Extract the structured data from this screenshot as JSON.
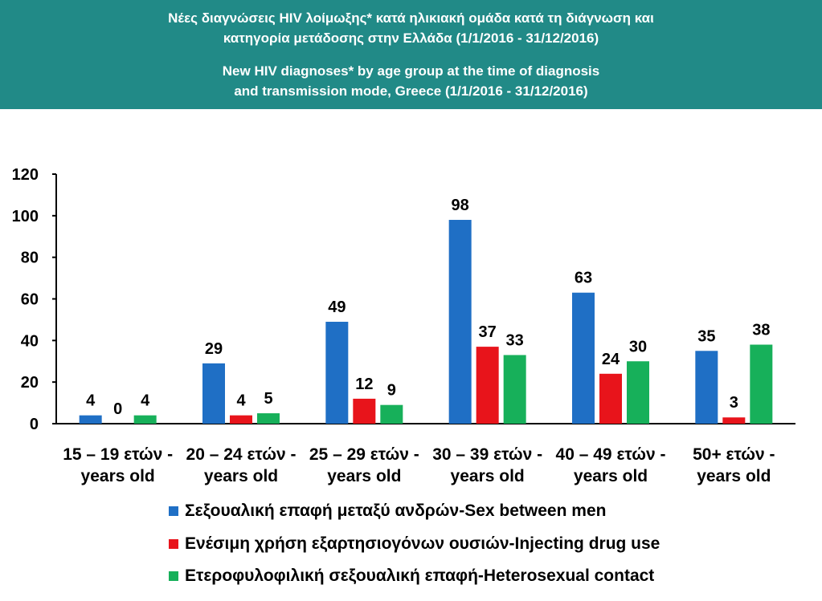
{
  "header": {
    "title_el_1": "Νέες διαγνώσεις HIV λοίμωξης* κατά ηλικιακή ομάδα κατά τη διάγνωση και",
    "title_el_2": "κατηγορία μετάδοσης στην Ελλάδα (1/1/2016 - 31/12/2016)",
    "title_en_1": "New HIV diagnoses* by age group at the time of diagnosis",
    "title_en_2": "and transmission mode, Greece (1/1/2016 - 31/12/2016)"
  },
  "colors": {
    "header_bg": "#218A87",
    "msm": "#1F6FC5",
    "idu": "#E8141B",
    "hetero": "#17B05A"
  },
  "chart_data": {
    "type": "bar",
    "categories": [
      [
        "15 – 19 ετών -",
        "years old"
      ],
      [
        "20 – 24 ετών -",
        "years old"
      ],
      [
        "25 – 29 ετών -",
        "years old"
      ],
      [
        "30 – 39 ετών -",
        "years old"
      ],
      [
        "40 – 49 ετών -",
        "years old"
      ],
      [
        "50+  ετών -",
        "years old"
      ]
    ],
    "series": [
      {
        "name": "Σεξουαλική επαφή μεταξύ ανδρών-Sex between men",
        "color": "#1F6FC5",
        "values": [
          4,
          29,
          49,
          98,
          63,
          35
        ]
      },
      {
        "name": "Ενέσιμη χρήση εξαρτησιογόνων ουσιών-Injecting drug use",
        "color": "#E8141B",
        "values": [
          0,
          4,
          12,
          37,
          24,
          3
        ]
      },
      {
        "name": "Ετεροφυλοφιλική σεξουαλική επαφή-Heterosexual contact",
        "color": "#17B05A",
        "values": [
          4,
          5,
          9,
          33,
          30,
          38
        ]
      }
    ],
    "y_ticks": [
      "0",
      "20",
      "40",
      "60",
      "80",
      "100",
      "120"
    ],
    "ylim": [
      0,
      120
    ],
    "grid": false,
    "legend_position": "bottom",
    "data_labels": true
  }
}
